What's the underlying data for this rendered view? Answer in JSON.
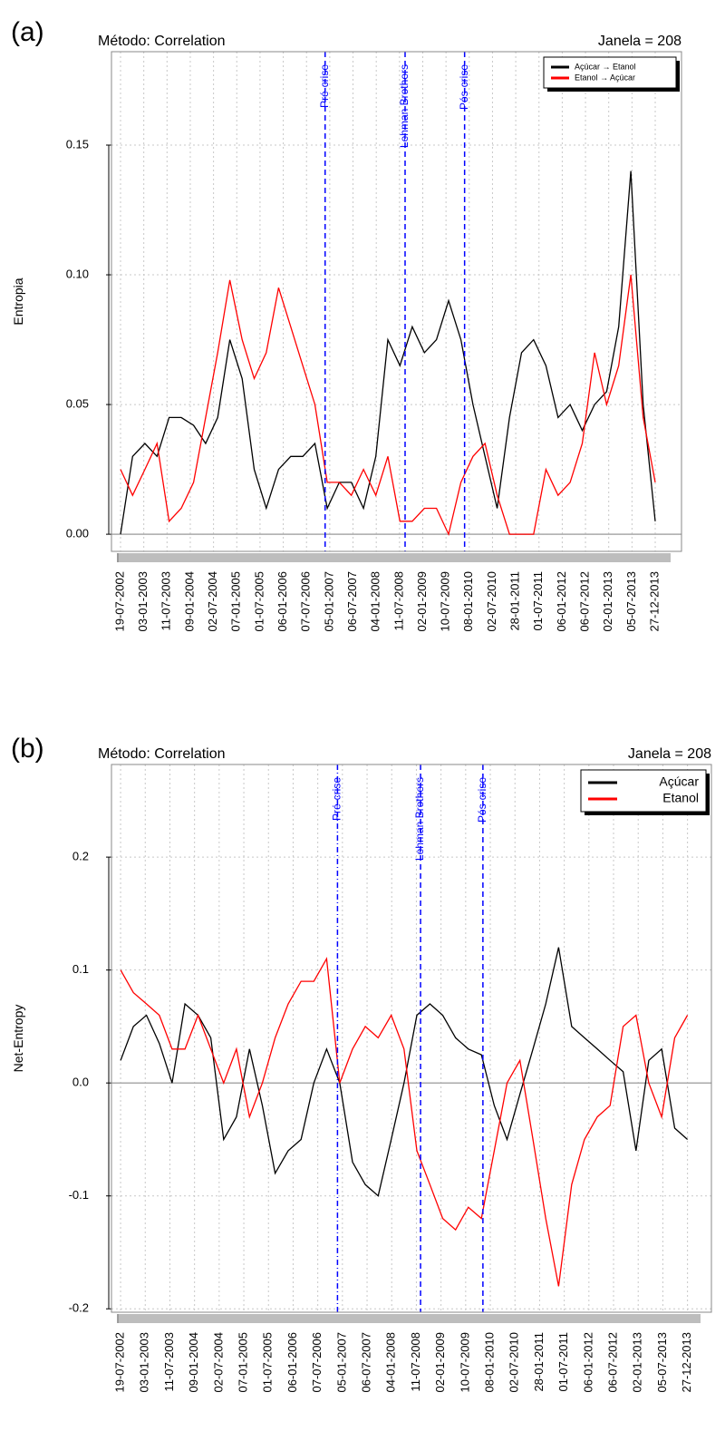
{
  "chart_data": [
    {
      "type": "line",
      "panel_label": "(a)",
      "title": "Método: Correlation",
      "subtitle": "Janela = 208",
      "ylabel": "Entropia",
      "x": [
        0,
        0.52,
        1.05,
        1.57,
        2.09,
        2.61,
        3.14,
        3.66,
        4.18,
        4.7,
        5.23,
        5.75,
        6.27,
        6.8,
        7.32,
        7.84,
        8.36,
        8.89,
        9.41,
        9.93,
        10.45,
        10.98,
        11.5,
        12.02,
        12.55,
        13.07,
        13.59,
        14.11,
        14.64,
        15.16,
        15.68,
        16.2,
        16.73,
        17.25,
        17.77,
        18.3,
        18.82,
        19.34,
        19.86,
        20.39,
        20.91,
        21.43,
        21.95,
        22.48,
        23
      ],
      "series": [
        {
          "name": "Açúcar → Etanol",
          "color": "#000000",
          "values": [
            0.0,
            0.03,
            0.035,
            0.03,
            0.045,
            0.045,
            0.042,
            0.035,
            0.045,
            0.075,
            0.06,
            0.025,
            0.01,
            0.025,
            0.03,
            0.03,
            0.035,
            0.01,
            0.02,
            0.02,
            0.01,
            0.03,
            0.075,
            0.065,
            0.08,
            0.07,
            0.075,
            0.09,
            0.075,
            0.05,
            0.03,
            0.01,
            0.045,
            0.07,
            0.075,
            0.065,
            0.045,
            0.05,
            0.04,
            0.05,
            0.055,
            0.08,
            0.14,
            0.05,
            0.005
          ]
        },
        {
          "name": "Etanol → Açúcar",
          "color": "#ff0000",
          "values": [
            0.025,
            0.015,
            0.025,
            0.035,
            0.005,
            0.01,
            0.02,
            0.045,
            0.07,
            0.098,
            0.075,
            0.06,
            0.07,
            0.095,
            0.08,
            0.065,
            0.05,
            0.02,
            0.02,
            0.015,
            0.025,
            0.015,
            0.03,
            0.005,
            0.005,
            0.01,
            0.01,
            0.0,
            0.02,
            0.03,
            0.035,
            0.015,
            0.0,
            0.0,
            0.0,
            0.025,
            0.015,
            0.02,
            0.035,
            0.07,
            0.05,
            0.065,
            0.1,
            0.045,
            0.02
          ]
        }
      ],
      "xlim": [
        -0.39,
        24.13
      ],
      "ylim": [
        -0.0066,
        0.186
      ],
      "yticks": [
        {
          "value": 0,
          "label": "0.00"
        },
        0.05,
        {
          "value": 0.1,
          "label": "0.10"
        },
        0.15
      ],
      "xticks": [
        {
          "value": 0,
          "label": "19-07-2002"
        },
        {
          "value": 1,
          "label": "03-01-2003"
        },
        {
          "value": 2,
          "label": "11-07-2003"
        },
        {
          "value": 3,
          "label": "09-01-2004"
        },
        {
          "value": 4,
          "label": "02-07-2004"
        },
        {
          "value": 5,
          "label": "07-01-2005"
        },
        {
          "value": 6,
          "label": "01-07-2005"
        },
        {
          "value": 7,
          "label": "06-01-2006"
        },
        {
          "value": 8,
          "label": "07-07-2006"
        },
        {
          "value": 9,
          "label": "05-01-2007"
        },
        {
          "value": 10,
          "label": "06-07-2007"
        },
        {
          "value": 11,
          "label": "04-01-2008"
        },
        {
          "value": 12,
          "label": "11-07-2008"
        },
        {
          "value": 13,
          "label": "02-01-2009"
        },
        {
          "value": 14,
          "label": "10-07-2009"
        },
        {
          "value": 15,
          "label": "08-01-2010"
        },
        {
          "value": 16,
          "label": "02-07-2010"
        },
        {
          "value": 17,
          "label": "28-01-2011"
        },
        {
          "value": 18,
          "label": "01-07-2011"
        },
        {
          "value": 19,
          "label": "06-01-2012"
        },
        {
          "value": 20,
          "label": "06-07-2012"
        },
        {
          "value": 21,
          "label": "02-01-2013"
        },
        {
          "value": 22,
          "label": "05-07-2013"
        },
        {
          "value": 23,
          "label": "27-12-2013"
        }
      ],
      "hline": 0,
      "grid": true,
      "legend": "top-right",
      "vlines": [
        {
          "label": "Pré-crise",
          "x": 8.8,
          "style": "dashed",
          "color": "#0000ff"
        },
        {
          "label": "Lehman Brothers",
          "x": 12.24,
          "style": "dashed",
          "color": "#0000ff"
        },
        {
          "label": "Pós-crise",
          "x": 14.8,
          "style": "dashed",
          "color": "#0000ff"
        }
      ]
    },
    {
      "type": "line",
      "panel_label": "(b)",
      "title": "Método: Correlation",
      "subtitle": "Janela = 208",
      "ylabel": "Net-Entropy",
      "x": [
        0,
        0.52,
        1.05,
        1.57,
        2.09,
        2.61,
        3.14,
        3.66,
        4.18,
        4.7,
        5.23,
        5.75,
        6.27,
        6.8,
        7.32,
        7.84,
        8.36,
        8.89,
        9.41,
        9.93,
        10.45,
        10.98,
        11.5,
        12.02,
        12.55,
        13.07,
        13.59,
        14.11,
        14.64,
        15.16,
        15.68,
        16.2,
        16.73,
        17.25,
        17.77,
        18.3,
        18.82,
        19.34,
        19.86,
        20.39,
        20.91,
        21.43,
        21.95,
        22.48,
        23
      ],
      "series": [
        {
          "name": "Açúcar",
          "color": "#000000",
          "values": [
            0.02,
            0.05,
            0.06,
            0.035,
            0.0,
            0.07,
            0.06,
            0.04,
            -0.05,
            -0.03,
            0.03,
            -0.02,
            -0.08,
            -0.06,
            -0.05,
            0.0,
            0.03,
            0.0,
            -0.07,
            -0.09,
            -0.1,
            -0.05,
            0.0,
            0.06,
            0.07,
            0.06,
            0.04,
            0.03,
            0.025,
            -0.02,
            -0.05,
            -0.01,
            0.03,
            0.07,
            0.12,
            0.05,
            0.04,
            0.03,
            0.02,
            0.01,
            -0.06,
            0.02,
            0.03,
            -0.04,
            -0.05
          ]
        },
        {
          "name": "Etanol",
          "color": "#ff0000",
          "values": [
            0.1,
            0.08,
            0.07,
            0.06,
            0.03,
            0.03,
            0.06,
            0.03,
            0.0,
            0.03,
            -0.03,
            0.0,
            0.04,
            0.07,
            0.09,
            0.09,
            0.11,
            0.0,
            0.03,
            0.05,
            0.04,
            0.06,
            0.03,
            -0.06,
            -0.09,
            -0.12,
            -0.13,
            -0.11,
            -0.12,
            -0.06,
            0.0,
            0.02,
            -0.05,
            -0.12,
            -0.18,
            -0.09,
            -0.05,
            -0.03,
            -0.02,
            0.05,
            0.06,
            0.0,
            -0.03,
            0.04,
            0.06
          ]
        }
      ],
      "xlim": [
        -0.37,
        23.97
      ],
      "ylim": [
        -0.203,
        0.282
      ],
      "yticks": [
        -0.2,
        -0.1,
        {
          "value": 0,
          "label": "0.0"
        },
        0.1,
        0.2
      ],
      "xticks": [
        {
          "value": 0,
          "label": "19-07-2002"
        },
        {
          "value": 1,
          "label": "03-01-2003"
        },
        {
          "value": 2,
          "label": "11-07-2003"
        },
        {
          "value": 3,
          "label": "09-01-2004"
        },
        {
          "value": 4,
          "label": "02-07-2004"
        },
        {
          "value": 5,
          "label": "07-01-2005"
        },
        {
          "value": 6,
          "label": "01-07-2005"
        },
        {
          "value": 7,
          "label": "06-01-2006"
        },
        {
          "value": 8,
          "label": "07-07-2006"
        },
        {
          "value": 9,
          "label": "05-01-2007"
        },
        {
          "value": 10,
          "label": "06-07-2007"
        },
        {
          "value": 11,
          "label": "04-01-2008"
        },
        {
          "value": 12,
          "label": "11-07-2008"
        },
        {
          "value": 13,
          "label": "02-01-2009"
        },
        {
          "value": 14,
          "label": "10-07-2009"
        },
        {
          "value": 15,
          "label": "08-01-2010"
        },
        {
          "value": 16,
          "label": "02-07-2010"
        },
        {
          "value": 17,
          "label": "28-01-2011"
        },
        {
          "value": 18,
          "label": "01-07-2011"
        },
        {
          "value": 19,
          "label": "06-01-2012"
        },
        {
          "value": 20,
          "label": "06-07-2012"
        },
        {
          "value": 21,
          "label": "02-01-2013"
        },
        {
          "value": 22,
          "label": "05-07-2013"
        },
        {
          "value": 23,
          "label": "27-12-2013"
        }
      ],
      "hline": 0,
      "grid": true,
      "legend": "top-right",
      "vlines": [
        {
          "label": "Pré-crise",
          "x": 8.8,
          "style": "dotdash",
          "color": "#0000ff"
        },
        {
          "label": "Lehman Brothers",
          "x": 12.17,
          "style": "dashed",
          "color": "#0000ff"
        },
        {
          "label": "Pós-crise",
          "x": 14.7,
          "style": "dashed",
          "color": "#0000ff"
        }
      ]
    }
  ]
}
